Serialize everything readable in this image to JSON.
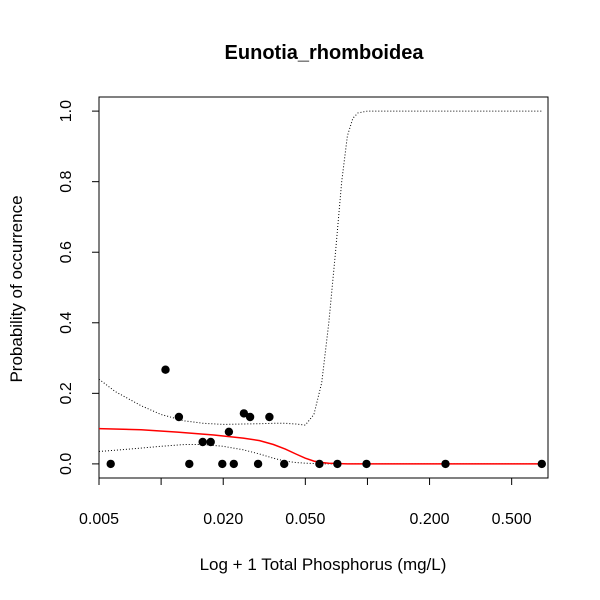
{
  "chart_data": {
    "type": "scatter",
    "title": "Eunotia_rhomboidea",
    "xlabel": "Log + 1 Total Phosphorus (mg/L)",
    "ylabel": "Probability of occurrence",
    "x_scale": "log",
    "xlim": [
      0.005,
      0.75
    ],
    "ylim": [
      -0.04,
      1.04
    ],
    "x_ticks": [
      0.005,
      0.01,
      0.02,
      0.05,
      0.1,
      0.2,
      0.5
    ],
    "x_tick_labels": [
      "0.005",
      "",
      "0.020",
      "0.050",
      "",
      "0.200",
      "0.500"
    ],
    "y_ticks": [
      0.0,
      0.2,
      0.4,
      0.6,
      0.8,
      1.0
    ],
    "y_tick_labels": [
      "0.0",
      "0.2",
      "0.4",
      "0.6",
      "0.8",
      "1.0"
    ],
    "grid": false,
    "legend": "none",
    "colors": {
      "points": "#000000",
      "fit": "#ff0000",
      "ci": "#000000"
    },
    "points": [
      {
        "x": 0.0057,
        "y": 0.0
      },
      {
        "x": 0.0105,
        "y": 0.267
      },
      {
        "x": 0.0122,
        "y": 0.133
      },
      {
        "x": 0.0137,
        "y": 0.0
      },
      {
        "x": 0.0159,
        "y": 0.062
      },
      {
        "x": 0.0174,
        "y": 0.062
      },
      {
        "x": 0.0198,
        "y": 0.0
      },
      {
        "x": 0.0213,
        "y": 0.091
      },
      {
        "x": 0.0225,
        "y": 0.0
      },
      {
        "x": 0.0252,
        "y": 0.143
      },
      {
        "x": 0.027,
        "y": 0.133
      },
      {
        "x": 0.0295,
        "y": 0.0
      },
      {
        "x": 0.0335,
        "y": 0.133
      },
      {
        "x": 0.0395,
        "y": 0.0
      },
      {
        "x": 0.0585,
        "y": 0.0
      },
      {
        "x": 0.0715,
        "y": 0.0
      },
      {
        "x": 0.099,
        "y": 0.0
      },
      {
        "x": 0.239,
        "y": 0.0
      },
      {
        "x": 0.7,
        "y": 0.0
      }
    ],
    "fit_line": {
      "x": [
        0.005,
        0.008,
        0.012,
        0.018,
        0.025,
        0.03,
        0.035,
        0.04,
        0.045,
        0.05,
        0.055,
        0.06,
        0.065,
        0.08,
        0.1,
        0.2,
        0.4,
        0.7
      ],
      "y": [
        0.1,
        0.097,
        0.09,
        0.082,
        0.073,
        0.066,
        0.055,
        0.042,
        0.028,
        0.016,
        0.008,
        0.004,
        0.002,
        0.0,
        0.0,
        0.0,
        0.0,
        0.0
      ]
    },
    "ci_upper": {
      "x": [
        0.005,
        0.006,
        0.008,
        0.01,
        0.013,
        0.016,
        0.02,
        0.025,
        0.03,
        0.035,
        0.04,
        0.045,
        0.05,
        0.055,
        0.06,
        0.065,
        0.07,
        0.075,
        0.08,
        0.085,
        0.09,
        0.1,
        0.15,
        0.3,
        0.7
      ],
      "y": [
        0.24,
        0.205,
        0.165,
        0.14,
        0.122,
        0.115,
        0.112,
        0.113,
        0.114,
        0.115,
        0.115,
        0.113,
        0.11,
        0.14,
        0.23,
        0.4,
        0.6,
        0.8,
        0.93,
        0.98,
        0.995,
        1.0,
        1.0,
        1.0,
        1.0
      ]
    },
    "ci_lower": {
      "x": [
        0.005,
        0.007,
        0.01,
        0.013,
        0.016,
        0.02,
        0.025,
        0.03,
        0.035,
        0.04,
        0.045,
        0.05,
        0.055,
        0.06,
        0.065,
        0.08,
        0.1,
        0.2,
        0.4,
        0.7
      ],
      "y": [
        0.035,
        0.042,
        0.05,
        0.055,
        0.055,
        0.05,
        0.04,
        0.028,
        0.016,
        0.008,
        0.004,
        0.002,
        0.001,
        0.0,
        0.0,
        0.0,
        0.0,
        0.0,
        0.0,
        0.0
      ]
    }
  }
}
